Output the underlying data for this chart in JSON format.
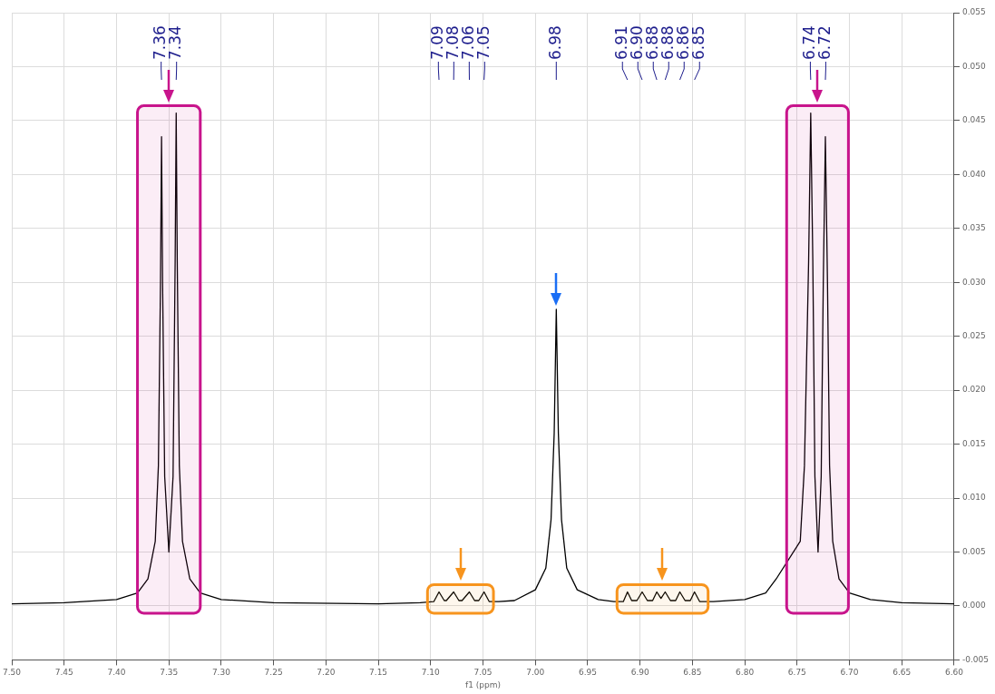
{
  "chart_data": {
    "type": "line",
    "xlabel": "f1 (ppm)",
    "series": [
      {
        "color": "#000000",
        "x": [
          7.5,
          7.45,
          7.4,
          7.38,
          7.37,
          7.363,
          7.36,
          7.358,
          7.357,
          7.356,
          7.354,
          7.35,
          7.346,
          7.344,
          7.343,
          7.342,
          7.34,
          7.337,
          7.33,
          7.32,
          7.3,
          7.25,
          7.15,
          7.11,
          7.097,
          7.092,
          7.087,
          7.085,
          7.078,
          7.073,
          7.07,
          7.063,
          7.058,
          7.054,
          7.049,
          7.044,
          7.035,
          7.02,
          7.0,
          6.99,
          6.985,
          6.982,
          6.98,
          6.978,
          6.975,
          6.97,
          6.96,
          6.94,
          6.925,
          6.916,
          6.912,
          6.908,
          6.903,
          6.898,
          6.893,
          6.888,
          6.884,
          6.88,
          6.876,
          6.871,
          6.866,
          6.862,
          6.857,
          6.852,
          6.848,
          6.843,
          6.83,
          6.8,
          6.78,
          6.77,
          6.747,
          6.743,
          6.739,
          6.737,
          6.735,
          6.733,
          6.73,
          6.727,
          6.725,
          6.723,
          6.721,
          6.719,
          6.716,
          6.71,
          6.7,
          6.68,
          6.65,
          6.6
        ],
        "values": [
          0.0002,
          0.0003,
          0.0006,
          0.0012,
          0.0025,
          0.006,
          0.013,
          0.03,
          0.0435,
          0.03,
          0.012,
          0.005,
          0.012,
          0.032,
          0.0457,
          0.032,
          0.013,
          0.006,
          0.0025,
          0.0012,
          0.0006,
          0.0003,
          0.0002,
          0.0003,
          0.0004,
          0.0013,
          0.0005,
          0.0005,
          0.0013,
          0.0005,
          0.0005,
          0.0013,
          0.0005,
          0.0005,
          0.0013,
          0.0004,
          0.0004,
          0.0005,
          0.0015,
          0.0035,
          0.008,
          0.016,
          0.0275,
          0.016,
          0.008,
          0.0035,
          0.0015,
          0.0006,
          0.0004,
          0.0004,
          0.0013,
          0.0005,
          0.0005,
          0.0013,
          0.0005,
          0.0005,
          0.0013,
          0.0007,
          0.0013,
          0.0005,
          0.0005,
          0.0013,
          0.0005,
          0.0005,
          0.0013,
          0.0004,
          0.0004,
          0.0006,
          0.0012,
          0.0025,
          0.006,
          0.013,
          0.032,
          0.0457,
          0.032,
          0.012,
          0.005,
          0.012,
          0.03,
          0.0435,
          0.03,
          0.013,
          0.006,
          0.0025,
          0.0012,
          0.0006,
          0.0003,
          0.0002
        ]
      }
    ],
    "xlim": [
      7.5,
      6.6
    ],
    "xticks": [
      {
        "value": 7.5,
        "label": "7.50"
      },
      {
        "value": 7.45,
        "label": "7.45"
      },
      {
        "value": 7.4,
        "label": "7.40"
      },
      {
        "value": 7.35,
        "label": "7.35"
      },
      {
        "value": 7.3,
        "label": "7.30"
      },
      {
        "value": 7.25,
        "label": "7.25"
      },
      {
        "value": 7.2,
        "label": "7.20"
      },
      {
        "value": 7.15,
        "label": "7.15"
      },
      {
        "value": 7.1,
        "label": "7.10"
      },
      {
        "value": 7.05,
        "label": "7.05"
      },
      {
        "value": 7.0,
        "label": "7.00"
      },
      {
        "value": 6.95,
        "label": "6.95"
      },
      {
        "value": 6.9,
        "label": "6.90"
      },
      {
        "value": 6.85,
        "label": "6.85"
      },
      {
        "value": 6.8,
        "label": "6.80"
      },
      {
        "value": 6.75,
        "label": "6.75"
      },
      {
        "value": 6.7,
        "label": "6.70"
      },
      {
        "value": 6.65,
        "label": "6.65"
      },
      {
        "value": 6.6,
        "label": "6.60"
      }
    ],
    "ylim": [
      -0.005,
      0.055
    ],
    "yticks": [
      {
        "value": -0.005,
        "label": "-0.005"
      },
      {
        "value": 0,
        "label": "0.000"
      },
      {
        "value": 0.005,
        "label": "0.005"
      },
      {
        "value": 0.01,
        "label": "0.010"
      },
      {
        "value": 0.015,
        "label": "0.015"
      },
      {
        "value": 0.02,
        "label": "0.020"
      },
      {
        "value": 0.025,
        "label": "0.025"
      },
      {
        "value": 0.03,
        "label": "0.030"
      },
      {
        "value": 0.035,
        "label": "0.035"
      },
      {
        "value": 0.04,
        "label": "0.040"
      },
      {
        "value": 0.045,
        "label": "0.045"
      },
      {
        "value": 0.05,
        "label": "0.050"
      },
      {
        "value": 0.055,
        "label": "0.055"
      }
    ],
    "grid": true,
    "legend": false,
    "marker": "none",
    "line_style": "solid",
    "bands": [
      {
        "axis": "x",
        "from": 7.38,
        "to": 7.32,
        "color": "#c8148c"
      },
      {
        "axis": "x",
        "from": 7.103,
        "to": 7.04,
        "color": "#f7941d"
      },
      {
        "axis": "x",
        "from": 6.922,
        "to": 6.835,
        "color": "#f7941d"
      },
      {
        "axis": "x",
        "from": 6.76,
        "to": 6.701,
        "color": "#c8148c"
      }
    ],
    "annotations": [
      "7.36",
      "7.34",
      "7.09",
      "7.08",
      "7.06",
      "7.05",
      "6.98",
      "6.91",
      "6.90",
      "6.88",
      "6.88",
      "6.86",
      "6.85",
      "6.74",
      "6.72"
    ]
  }
}
